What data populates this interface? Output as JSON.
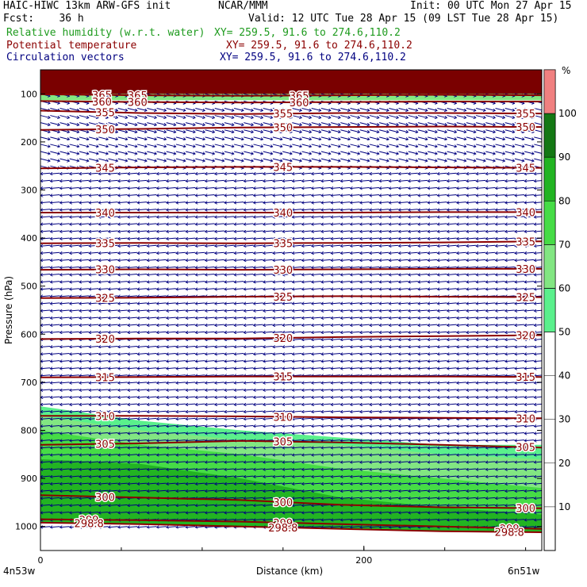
{
  "header": {
    "model": "HAIC-HIWC 13km ARW-GFS init",
    "org": "NCAR/MMM",
    "init": "Init: 00 UTC Mon 27 Apr 15",
    "fcst": "Fcst:    36 h",
    "valid": "Valid: 12 UTC Tue 28 Apr 15 (09 LST Tue 28 Apr 15)",
    "fields": [
      {
        "name": "Relative humidity (w.r.t. water)",
        "xy": "XY= 259.5, 91.6 to 274.6,110.2",
        "color": "#1e9b1e"
      },
      {
        "name": "Potential temperature",
        "xy": "XY= 259.5, 91.6 to 274.6,110.2",
        "color": "#8b0000"
      },
      {
        "name": "Circulation vectors",
        "xy": "XY= 259.5, 91.6 to 274.6,110.2",
        "color": "#000080"
      }
    ]
  },
  "chart_data": {
    "type": "cross-section",
    "xlabel": "Distance (km)",
    "ylabel": "Pressure (hPa)",
    "x_range_km": [
      0,
      310
    ],
    "x_ticks": [
      0,
      200
    ],
    "x_end_labels": [
      "4n53w",
      "6n51w"
    ],
    "y_range_hpa": [
      1050,
      50
    ],
    "y_ticks": [
      100,
      200,
      300,
      400,
      500,
      600,
      700,
      800,
      900,
      1000
    ],
    "colorbar": {
      "unit": "%",
      "ticks": [
        10,
        20,
        30,
        40,
        50,
        60,
        70,
        80,
        90,
        100
      ],
      "bands": [
        {
          "from": 50,
          "to": 60,
          "color": "#5af08c"
        },
        {
          "from": 60,
          "to": 70,
          "color": "#82e682"
        },
        {
          "from": 70,
          "to": 80,
          "color": "#46dc46"
        },
        {
          "from": 80,
          "to": 90,
          "color": "#22b422"
        },
        {
          "from": 90,
          "to": 100,
          "color": "#147814"
        },
        {
          "from": 100,
          "to": 110,
          "color": "#f08080"
        }
      ]
    },
    "theta_contours": [
      {
        "label": "365",
        "p": [
          101,
          103,
          104,
          103,
          102,
          103
        ]
      },
      {
        "label": "360",
        "p": [
          115,
          117,
          118,
          117,
          116,
          116
        ]
      },
      {
        "label": "355",
        "p": [
          135,
          140,
          142,
          140,
          140,
          141
        ]
      },
      {
        "label": "350",
        "p": [
          175,
          173,
          170,
          169,
          168,
          169
        ]
      },
      {
        "label": "345",
        "p": [
          255,
          253,
          252,
          252,
          253,
          254
        ]
      },
      {
        "label": "340",
        "p": [
          347,
          347,
          347,
          347,
          346,
          346
        ]
      },
      {
        "label": "335",
        "p": [
          411,
          410,
          411,
          410,
          409,
          407
        ]
      },
      {
        "label": "330",
        "p": [
          466,
          465,
          466,
          465,
          464,
          464
        ]
      },
      {
        "label": "325",
        "p": [
          525,
          524,
          522,
          521,
          522,
          523
        ]
      },
      {
        "label": "320",
        "p": [
          610,
          609,
          609,
          606,
          604,
          602
        ]
      },
      {
        "label": "315",
        "p": [
          690,
          689,
          688,
          688,
          688,
          689
        ]
      },
      {
        "label": "310",
        "p": [
          770,
          770,
          771,
          773,
          774,
          775
        ]
      },
      {
        "label": "305",
        "p": [
          830,
          827,
          822,
          825,
          830,
          836
        ]
      },
      {
        "label": "300",
        "p": [
          935,
          940,
          945,
          955,
          960,
          962
        ]
      },
      {
        "label": "299",
        "p": [
          985,
          987,
          990,
          995,
          1000,
          1005
        ]
      },
      {
        "label": "298.8",
        "p": [
          992,
          995,
          1000,
          1005,
          1010,
          1012
        ]
      }
    ],
    "theta_label_positions_km": [
      [
        60,
        38,
        160
      ],
      [
        150,
        40,
        300
      ],
      [
        150,
        30,
        290
      ]
    ],
    "rh_regions": [
      {
        "band": "50-60",
        "top_p": [
          750,
          780,
          800,
          815,
          830,
          830
        ]
      },
      {
        "band": "60-70",
        "top_p": [
          770,
          800,
          820,
          830,
          850,
          860
        ]
      },
      {
        "band": "70-80",
        "top_p": [
          800,
          830,
          850,
          880,
          900,
          920
        ]
      },
      {
        "band": "80-90",
        "top_p": [
          860,
          870,
          900,
          940,
          960,
          975
        ]
      }
    ],
    "upper_dry_band_top_hpa": 50,
    "upper_dry_band_bottom_hpa": 110,
    "wind_regime": [
      {
        "p_min": 100,
        "p_max": 260,
        "direction": "east"
      },
      {
        "p_min": 260,
        "p_max": 1010,
        "direction": "west"
      }
    ]
  }
}
